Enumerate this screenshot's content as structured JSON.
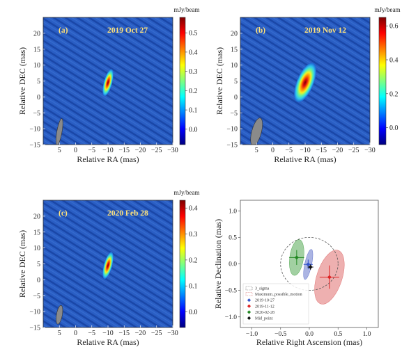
{
  "chart_data": [
    {
      "type": "heatmap",
      "panel_label": "(a)",
      "title": "2019 Oct 27",
      "xlabel": "Relative RA (mas)",
      "ylabel": "Relative DEC (mas)",
      "xticks": [
        5,
        0,
        -5,
        -10,
        -15,
        -20,
        -25,
        -30
      ],
      "yticks": [
        20,
        15,
        10,
        5,
        0,
        -5,
        -10,
        -15
      ],
      "xlim": [
        10,
        -30
      ],
      "ylim": [
        -15,
        25
      ],
      "colorbar": {
        "label": "mJy/beam",
        "ticks": [
          0.0,
          0.1,
          0.2,
          0.3,
          0.4,
          0.5
        ],
        "range": [
          -0.08,
          0.58
        ]
      },
      "source": {
        "x": -10,
        "y": 4.5,
        "peak": 0.58
      },
      "beam": {
        "x": 5,
        "y": -11,
        "major": 8.5,
        "minor": 1.6,
        "pa_deg": 10
      }
    },
    {
      "type": "heatmap",
      "panel_label": "(b)",
      "title": "2019 Nov 12",
      "xlabel": "Relative RA (mas)",
      "ylabel": "Relative DEC (mas)",
      "xticks": [
        5,
        0,
        -5,
        -10,
        -15,
        -20,
        -25,
        -30
      ],
      "yticks": [
        20,
        15,
        10,
        5,
        0,
        -5,
        -10,
        -15
      ],
      "xlim": [
        10,
        -30
      ],
      "ylim": [
        -15,
        25
      ],
      "colorbar": {
        "label": "mJy/beam",
        "ticks": [
          0.0,
          0.2,
          0.4,
          0.6
        ],
        "range": [
          -0.1,
          0.65
        ]
      },
      "source": {
        "x": -10,
        "y": 4.5,
        "peak": 0.65
      },
      "beam": {
        "x": 5,
        "y": -11,
        "major": 9,
        "minor": 3,
        "pa_deg": 15
      }
    },
    {
      "type": "heatmap",
      "panel_label": "(c)",
      "title": "2020 Feb 28",
      "xlabel": "Relative RA (mas)",
      "ylabel": "Relative DEC (mas)",
      "xticks": [
        5,
        0,
        -5,
        -10,
        -15,
        -20,
        -25,
        -30
      ],
      "yticks": [
        20,
        15,
        10,
        5,
        0,
        -5,
        -10,
        -15
      ],
      "xlim": [
        10,
        -30
      ],
      "ylim": [
        -15,
        25
      ],
      "colorbar": {
        "label": "mJy/beam",
        "ticks": [
          0.0,
          0.1,
          0.2,
          0.3,
          0.4
        ],
        "range": [
          -0.06,
          0.43
        ]
      },
      "source": {
        "x": -10,
        "y": 4.5,
        "peak": 0.43
      },
      "beam": {
        "x": 5,
        "y": -11,
        "major": 6,
        "minor": 1.8,
        "pa_deg": 10
      }
    },
    {
      "type": "scatter",
      "xlabel": "Relative Right Ascension (mas)",
      "ylabel": "Relative Declination (mas)",
      "xticks": [
        -1.0,
        -0.5,
        0.0,
        0.5,
        1.0
      ],
      "yticks": [
        1.0,
        0.5,
        0.0,
        -0.5,
        -1.0
      ],
      "xlim": [
        -1.2,
        1.2
      ],
      "ylim": [
        -1.2,
        1.2
      ],
      "legend_placement": "lower-left",
      "legend": [
        "3_sigma",
        "Maximum_possible_motion",
        "2019-10-27",
        "2019-11-12",
        "2020-02-28",
        "Mid_point"
      ],
      "circle": {
        "x": 0.0,
        "y": 0.0,
        "r": 0.5,
        "color": "#555555"
      },
      "series": [
        {
          "name": "2019-10-27",
          "color": "#3355cc",
          "x": -0.02,
          "y": -0.01,
          "xerr": 0.08,
          "yerr": 0.09,
          "ellipse": {
            "rx": 0.06,
            "ry": 0.29,
            "angle": 12,
            "fill": "#6677cc"
          }
        },
        {
          "name": "2019-11-12",
          "color": "#dd2222",
          "x": 0.35,
          "y": -0.25,
          "xerr": 0.17,
          "yerr": 0.22,
          "ellipse": {
            "rx": 0.22,
            "ry": 0.53,
            "angle": 18,
            "fill": "#e07070"
          }
        },
        {
          "name": "2020-02-28",
          "color": "#228822",
          "x": -0.22,
          "y": 0.12,
          "xerr": 0.13,
          "yerr": 0.14,
          "ellipse": {
            "rx": 0.12,
            "ry": 0.34,
            "angle": 8,
            "fill": "#55aa55"
          }
        },
        {
          "name": "Mid_point",
          "color": "#111111",
          "x": 0.02,
          "y": -0.06,
          "xerr": 0.05,
          "yerr": 0.05
        }
      ]
    }
  ]
}
